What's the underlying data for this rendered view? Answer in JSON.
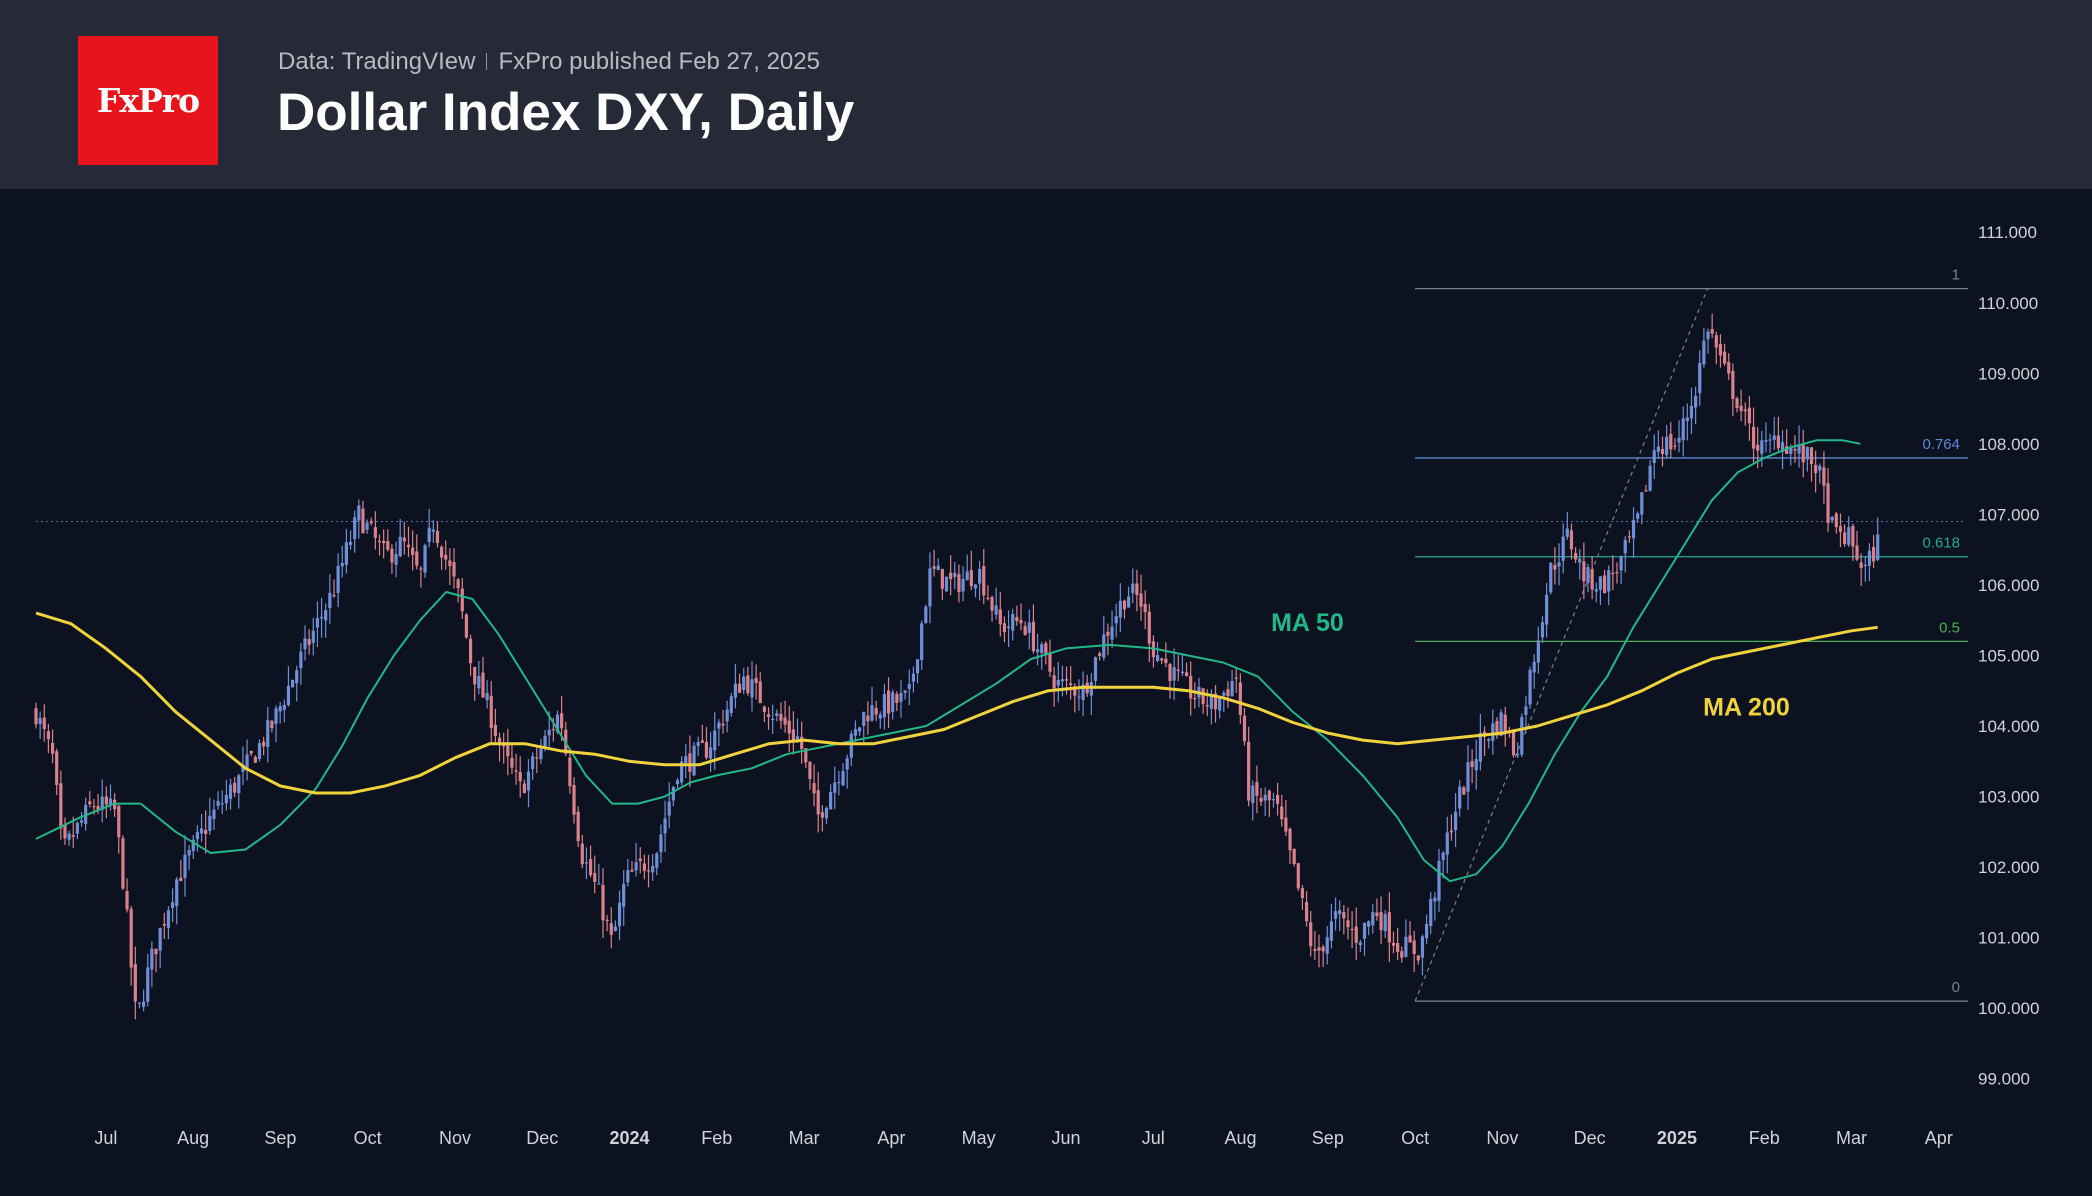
{
  "header": {
    "logo_text": "FxPro",
    "data_source": "Data: TradingVIew",
    "published": "FxPro published Feb 27, 2025",
    "title": "Dollar Index DXY, Daily"
  },
  "colors": {
    "background": "#0d1220",
    "header_bg": "#262a36",
    "logo_red": "#e8141b",
    "candle_up": "#6f8fd6",
    "candle_down": "#d9828b",
    "ma50": "#22b788",
    "ma200": "#f0d23c",
    "fib_1": "#7c8290",
    "fib_0764": "#5b8bd6",
    "fib_0618": "#26a69a",
    "fib_05": "#4caf50",
    "fib_0": "#7c8290",
    "current_price_line": "#5b6fa8"
  },
  "chart_data": {
    "type": "candlestick",
    "title": "Dollar Index DXY, Daily",
    "y_axis_position": "right",
    "ylim": [
      98.5,
      111.4
    ],
    "y_ticks": [
      "111.000",
      "110.000",
      "109.000",
      "108.000",
      "107.000",
      "106.000",
      "105.000",
      "104.000",
      "103.000",
      "102.000",
      "101.000",
      "100.000",
      "99.000"
    ],
    "x_ticks": [
      {
        "label": "Jul",
        "t": 0
      },
      {
        "label": "Aug",
        "t": 1
      },
      {
        "label": "Sep",
        "t": 2
      },
      {
        "label": "Oct",
        "t": 3
      },
      {
        "label": "Nov",
        "t": 4
      },
      {
        "label": "Dec",
        "t": 5
      },
      {
        "label": "2024",
        "t": 6,
        "bold": true
      },
      {
        "label": "Feb",
        "t": 7
      },
      {
        "label": "Mar",
        "t": 8
      },
      {
        "label": "Apr",
        "t": 9
      },
      {
        "label": "May",
        "t": 10
      },
      {
        "label": "Jun",
        "t": 11
      },
      {
        "label": "Jul",
        "t": 12
      },
      {
        "label": "Aug",
        "t": 13
      },
      {
        "label": "Sep",
        "t": 14
      },
      {
        "label": "Oct",
        "t": 15
      },
      {
        "label": "Nov",
        "t": 16
      },
      {
        "label": "Dec",
        "t": 17
      },
      {
        "label": "2025",
        "t": 18,
        "bold": true
      },
      {
        "label": "Feb",
        "t": 19
      },
      {
        "label": "Mar",
        "t": 20
      },
      {
        "label": "Apr",
        "t": 21
      }
    ],
    "x_range": [
      -0.8,
      21.3
    ],
    "price_anchors": [
      [
        -0.8,
        104.2
      ],
      [
        -0.6,
        103.5
      ],
      [
        -0.5,
        102.2
      ],
      [
        -0.15,
        102.9
      ],
      [
        0.1,
        102.8
      ],
      [
        0.2,
        101.8
      ],
      [
        0.35,
        99.8
      ],
      [
        0.5,
        100.6
      ],
      [
        0.8,
        101.8
      ],
      [
        1.2,
        102.7
      ],
      [
        1.5,
        103.2
      ],
      [
        1.9,
        104.0
      ],
      [
        2.25,
        105.0
      ],
      [
        2.6,
        105.9
      ],
      [
        2.9,
        107.0
      ],
      [
        3.2,
        106.4
      ],
      [
        3.4,
        106.6
      ],
      [
        3.6,
        106.1
      ],
      [
        3.75,
        106.9
      ],
      [
        4.05,
        105.8
      ],
      [
        4.2,
        104.8
      ],
      [
        4.4,
        104.2
      ],
      [
        4.55,
        103.6
      ],
      [
        4.75,
        103.1
      ],
      [
        5.2,
        104.2
      ],
      [
        5.45,
        102.2
      ],
      [
        5.65,
        101.6
      ],
      [
        5.8,
        100.9
      ],
      [
        5.95,
        101.8
      ],
      [
        6.3,
        102.2
      ],
      [
        6.55,
        103.4
      ],
      [
        6.9,
        103.7
      ],
      [
        7.3,
        104.7
      ],
      [
        7.7,
        104.1
      ],
      [
        7.95,
        103.8
      ],
      [
        8.15,
        102.7
      ],
      [
        8.45,
        103.5
      ],
      [
        8.7,
        104.2
      ],
      [
        9.2,
        104.4
      ],
      [
        9.45,
        106.2
      ],
      [
        9.7,
        106.0
      ],
      [
        10.0,
        106.2
      ],
      [
        10.25,
        105.4
      ],
      [
        10.5,
        105.5
      ],
      [
        10.9,
        104.6
      ],
      [
        11.2,
        104.5
      ],
      [
        11.45,
        105.3
      ],
      [
        11.7,
        105.9
      ],
      [
        11.85,
        105.8
      ],
      [
        12.0,
        105.1
      ],
      [
        12.25,
        104.7
      ],
      [
        12.5,
        104.4
      ],
      [
        12.7,
        104.3
      ],
      [
        12.95,
        104.7
      ],
      [
        13.1,
        103.0
      ],
      [
        13.4,
        102.9
      ],
      [
        13.6,
        102.0
      ],
      [
        13.85,
        100.7
      ],
      [
        14.1,
        101.3
      ],
      [
        14.35,
        101.0
      ],
      [
        14.55,
        101.4
      ],
      [
        14.8,
        100.9
      ],
      [
        15.05,
        100.8
      ],
      [
        15.25,
        101.8
      ],
      [
        15.45,
        102.8
      ],
      [
        15.75,
        103.8
      ],
      [
        16.0,
        104.1
      ],
      [
        16.15,
        103.6
      ],
      [
        16.3,
        104.6
      ],
      [
        16.55,
        106.2
      ],
      [
        16.75,
        106.7
      ],
      [
        16.95,
        106.1
      ],
      [
        17.15,
        106.0
      ],
      [
        17.35,
        106.3
      ],
      [
        17.55,
        106.9
      ],
      [
        17.75,
        108.0
      ],
      [
        18.0,
        108.0
      ],
      [
        18.2,
        108.7
      ],
      [
        18.35,
        109.7
      ],
      [
        18.55,
        109.0
      ],
      [
        18.7,
        108.6
      ],
      [
        18.85,
        108.1
      ],
      [
        19.0,
        107.9
      ],
      [
        19.15,
        108.1
      ],
      [
        19.35,
        107.9
      ],
      [
        19.6,
        107.7
      ],
      [
        19.8,
        106.7
      ],
      [
        19.95,
        106.7
      ],
      [
        20.15,
        106.2
      ],
      [
        20.3,
        106.6
      ]
    ],
    "series": [
      {
        "name": "MA 50",
        "color": "#22b788",
        "values": [
          [
            -0.8,
            102.4
          ],
          [
            -0.3,
            102.7
          ],
          [
            0.1,
            102.9
          ],
          [
            0.4,
            102.9
          ],
          [
            0.8,
            102.5
          ],
          [
            1.2,
            102.2
          ],
          [
            1.6,
            102.25
          ],
          [
            2.0,
            102.6
          ],
          [
            2.4,
            103.1
          ],
          [
            2.7,
            103.7
          ],
          [
            3.0,
            104.4
          ],
          [
            3.3,
            105.0
          ],
          [
            3.6,
            105.5
          ],
          [
            3.9,
            105.9
          ],
          [
            4.2,
            105.8
          ],
          [
            4.5,
            105.3
          ],
          [
            4.8,
            104.7
          ],
          [
            5.2,
            103.9
          ],
          [
            5.5,
            103.3
          ],
          [
            5.8,
            102.9
          ],
          [
            6.1,
            102.9
          ],
          [
            6.4,
            103.0
          ],
          [
            6.7,
            103.2
          ],
          [
            7.0,
            103.3
          ],
          [
            7.4,
            103.4
          ],
          [
            7.8,
            103.6
          ],
          [
            8.2,
            103.7
          ],
          [
            8.6,
            103.8
          ],
          [
            9.0,
            103.9
          ],
          [
            9.4,
            104.0
          ],
          [
            9.8,
            104.3
          ],
          [
            10.2,
            104.6
          ],
          [
            10.6,
            104.95
          ],
          [
            11.0,
            105.1
          ],
          [
            11.5,
            105.15
          ],
          [
            12.0,
            105.1
          ],
          [
            12.4,
            105.0
          ],
          [
            12.8,
            104.9
          ],
          [
            13.2,
            104.7
          ],
          [
            13.6,
            104.2
          ],
          [
            14.0,
            103.8
          ],
          [
            14.4,
            103.3
          ],
          [
            14.8,
            102.7
          ],
          [
            15.1,
            102.1
          ],
          [
            15.4,
            101.8
          ],
          [
            15.7,
            101.9
          ],
          [
            16.0,
            102.3
          ],
          [
            16.3,
            102.9
          ],
          [
            16.6,
            103.6
          ],
          [
            16.9,
            104.2
          ],
          [
            17.2,
            104.7
          ],
          [
            17.5,
            105.4
          ],
          [
            17.8,
            106.0
          ],
          [
            18.1,
            106.6
          ],
          [
            18.4,
            107.2
          ],
          [
            18.7,
            107.6
          ],
          [
            19.0,
            107.8
          ],
          [
            19.3,
            107.95
          ],
          [
            19.6,
            108.05
          ],
          [
            19.9,
            108.05
          ],
          [
            20.1,
            108.0
          ]
        ]
      },
      {
        "name": "MA 200",
        "color": "#f0d23c",
        "values": [
          [
            -0.8,
            105.6
          ],
          [
            -0.4,
            105.45
          ],
          [
            0.0,
            105.1
          ],
          [
            0.4,
            104.7
          ],
          [
            0.8,
            104.2
          ],
          [
            1.2,
            103.8
          ],
          [
            1.6,
            103.4
          ],
          [
            2.0,
            103.15
          ],
          [
            2.4,
            103.05
          ],
          [
            2.8,
            103.05
          ],
          [
            3.2,
            103.15
          ],
          [
            3.6,
            103.3
          ],
          [
            4.0,
            103.55
          ],
          [
            4.4,
            103.75
          ],
          [
            4.8,
            103.75
          ],
          [
            5.2,
            103.65
          ],
          [
            5.6,
            103.6
          ],
          [
            6.0,
            103.5
          ],
          [
            6.4,
            103.45
          ],
          [
            6.8,
            103.45
          ],
          [
            7.2,
            103.6
          ],
          [
            7.6,
            103.75
          ],
          [
            8.0,
            103.8
          ],
          [
            8.4,
            103.75
          ],
          [
            8.8,
            103.75
          ],
          [
            9.2,
            103.85
          ],
          [
            9.6,
            103.95
          ],
          [
            10.0,
            104.15
          ],
          [
            10.4,
            104.35
          ],
          [
            10.8,
            104.5
          ],
          [
            11.2,
            104.55
          ],
          [
            11.6,
            104.55
          ],
          [
            12.0,
            104.55
          ],
          [
            12.4,
            104.5
          ],
          [
            12.8,
            104.4
          ],
          [
            13.2,
            104.25
          ],
          [
            13.6,
            104.05
          ],
          [
            14.0,
            103.9
          ],
          [
            14.4,
            103.8
          ],
          [
            14.8,
            103.75
          ],
          [
            15.2,
            103.8
          ],
          [
            15.6,
            103.85
          ],
          [
            16.0,
            103.9
          ],
          [
            16.4,
            104.0
          ],
          [
            16.8,
            104.15
          ],
          [
            17.2,
            104.3
          ],
          [
            17.6,
            104.5
          ],
          [
            18.0,
            104.75
          ],
          [
            18.4,
            104.95
          ],
          [
            18.8,
            105.05
          ],
          [
            19.2,
            105.15
          ],
          [
            19.6,
            105.25
          ],
          [
            20.0,
            105.35
          ],
          [
            20.3,
            105.4
          ]
        ]
      }
    ],
    "fibonacci": {
      "x_start": 15.0,
      "swing_from": [
        15.0,
        100.1
      ],
      "swing_to": [
        18.35,
        110.2
      ],
      "levels": [
        {
          "label": "1",
          "value": 110.2,
          "color": "#7c8290"
        },
        {
          "label": "0.764",
          "value": 107.8,
          "color": "#5b8bd6"
        },
        {
          "label": "0.618",
          "value": 106.4,
          "color": "#26a69a"
        },
        {
          "label": "0.5",
          "value": 105.2,
          "color": "#4caf50"
        },
        {
          "label": "0",
          "value": 100.1,
          "color": "#7c8290"
        }
      ]
    },
    "current_price": 106.9,
    "annotations": [
      {
        "text": "MA 50",
        "x": 13.35,
        "y": 105.35,
        "color": "#22b788"
      },
      {
        "text": "MA 200",
        "x": 18.3,
        "y": 104.15,
        "color": "#f0d23c"
      }
    ],
    "grid": false,
    "legend": "none"
  }
}
